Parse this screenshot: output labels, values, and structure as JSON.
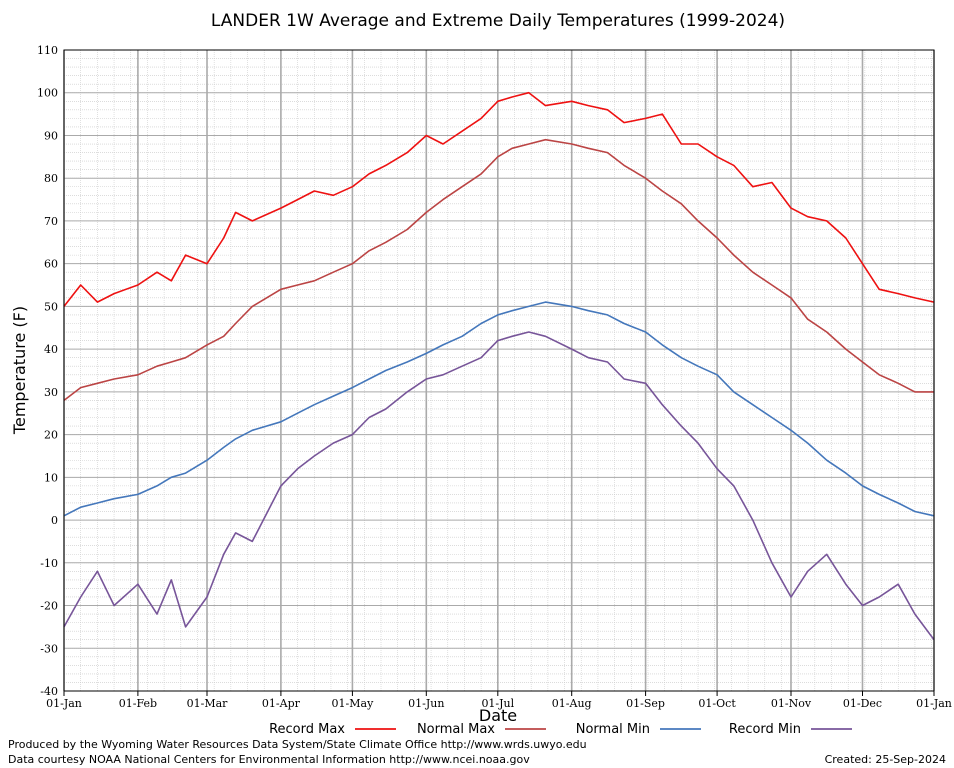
{
  "chart_data": {
    "type": "line",
    "title": "LANDER 1W Average and Extreme Daily Temperatures (1999-2024)",
    "xlabel": "Date",
    "ylabel": "Temperature (F)",
    "ylim": [
      -40,
      110
    ],
    "xlim_day": [
      1,
      366
    ],
    "y_ticks": [
      "110",
      "100",
      "90",
      "80",
      "70",
      "60",
      "50",
      "40",
      "30",
      "20",
      "10",
      "0",
      "-10",
      "-20",
      "-30",
      "-40"
    ],
    "x_ticks": [
      {
        "label": "01-Jan",
        "day": 1
      },
      {
        "label": "01-Feb",
        "day": 32
      },
      {
        "label": "01-Mar",
        "day": 61
      },
      {
        "label": "01-Apr",
        "day": 92
      },
      {
        "label": "01-May",
        "day": 122
      },
      {
        "label": "01-Jun",
        "day": 153
      },
      {
        "label": "01-Jul",
        "day": 183
      },
      {
        "label": "01-Aug",
        "day": 214
      },
      {
        "label": "01-Sep",
        "day": 245
      },
      {
        "label": "01-Oct",
        "day": 275
      },
      {
        "label": "01-Nov",
        "day": 306
      },
      {
        "label": "01-Dec",
        "day": 336
      },
      {
        "label": "01-Jan",
        "day": 366
      }
    ],
    "grid": true,
    "legend_position": "bottom",
    "x_unit": "day of year",
    "series": [
      {
        "name": "Record Max",
        "color": "#ee1111",
        "days": [
          1,
          8,
          15,
          22,
          32,
          40,
          46,
          52,
          61,
          68,
          73,
          80,
          92,
          99,
          106,
          114,
          122,
          129,
          136,
          145,
          153,
          160,
          168,
          176,
          183,
          189,
          196,
          203,
          214,
          221,
          229,
          236,
          245,
          252,
          260,
          267,
          275,
          282,
          290,
          298,
          306,
          313,
          321,
          329,
          336,
          343,
          351,
          358,
          366
        ],
        "values": [
          50,
          55,
          51,
          53,
          55,
          58,
          56,
          62,
          60,
          66,
          72,
          70,
          73,
          75,
          77,
          76,
          78,
          81,
          83,
          86,
          90,
          88,
          91,
          94,
          98,
          99,
          100,
          97,
          98,
          97,
          96,
          93,
          94,
          95,
          88,
          88,
          85,
          83,
          78,
          79,
          73,
          71,
          70,
          66,
          60,
          54,
          53,
          52,
          51
        ]
      },
      {
        "name": "Normal Max",
        "color": "#bb4444",
        "days": [
          1,
          8,
          15,
          22,
          32,
          40,
          46,
          52,
          61,
          68,
          73,
          80,
          92,
          99,
          106,
          114,
          122,
          129,
          136,
          145,
          153,
          160,
          168,
          176,
          183,
          189,
          196,
          203,
          214,
          221,
          229,
          236,
          245,
          252,
          260,
          267,
          275,
          282,
          290,
          298,
          306,
          313,
          321,
          329,
          336,
          343,
          351,
          358,
          366
        ],
        "values": [
          28,
          31,
          32,
          33,
          34,
          36,
          37,
          38,
          41,
          43,
          46,
          50,
          54,
          55,
          56,
          58,
          60,
          63,
          65,
          68,
          72,
          75,
          78,
          81,
          85,
          87,
          88,
          89,
          88,
          87,
          86,
          83,
          80,
          77,
          74,
          70,
          66,
          62,
          58,
          55,
          52,
          47,
          44,
          40,
          37,
          34,
          32,
          30,
          30
        ]
      },
      {
        "name": "Normal Min",
        "color": "#4477bb",
        "days": [
          1,
          8,
          15,
          22,
          32,
          40,
          46,
          52,
          61,
          68,
          73,
          80,
          92,
          99,
          106,
          114,
          122,
          129,
          136,
          145,
          153,
          160,
          168,
          176,
          183,
          189,
          196,
          203,
          214,
          221,
          229,
          236,
          245,
          252,
          260,
          267,
          275,
          282,
          290,
          298,
          306,
          313,
          321,
          329,
          336,
          343,
          351,
          358,
          366
        ],
        "values": [
          1,
          3,
          4,
          5,
          6,
          8,
          10,
          11,
          14,
          17,
          19,
          21,
          23,
          25,
          27,
          29,
          31,
          33,
          35,
          37,
          39,
          41,
          43,
          46,
          48,
          49,
          50,
          51,
          50,
          49,
          48,
          46,
          44,
          41,
          38,
          36,
          34,
          30,
          27,
          24,
          21,
          18,
          14,
          11,
          8,
          6,
          4,
          2,
          1
        ]
      },
      {
        "name": "Record Min",
        "color": "#775599",
        "days": [
          1,
          8,
          15,
          22,
          32,
          40,
          46,
          52,
          61,
          68,
          73,
          80,
          92,
          99,
          106,
          114,
          122,
          129,
          136,
          145,
          153,
          160,
          168,
          176,
          183,
          189,
          196,
          203,
          214,
          221,
          229,
          236,
          245,
          252,
          260,
          267,
          275,
          282,
          290,
          298,
          306,
          313,
          321,
          329,
          336,
          343,
          351,
          358,
          366
        ],
        "values": [
          -25,
          -18,
          -12,
          -20,
          -15,
          -22,
          -14,
          -25,
          -18,
          -8,
          -3,
          -5,
          8,
          12,
          15,
          18,
          20,
          24,
          26,
          30,
          33,
          34,
          36,
          38,
          42,
          43,
          44,
          43,
          40,
          38,
          37,
          33,
          32,
          27,
          22,
          18,
          12,
          8,
          0,
          -10,
          -18,
          -12,
          -8,
          -15,
          -20,
          -18,
          -15,
          -22,
          -28
        ]
      }
    ]
  },
  "footer": {
    "line1": "Produced by the Wyoming Water Resources Data System/State Climate Office http://www.wrds.uwyo.edu",
    "line2": "Data courtesy NOAA National Centers for Environmental Information http://www.ncei.noaa.gov",
    "created": "Created:  25-Sep-2024"
  }
}
